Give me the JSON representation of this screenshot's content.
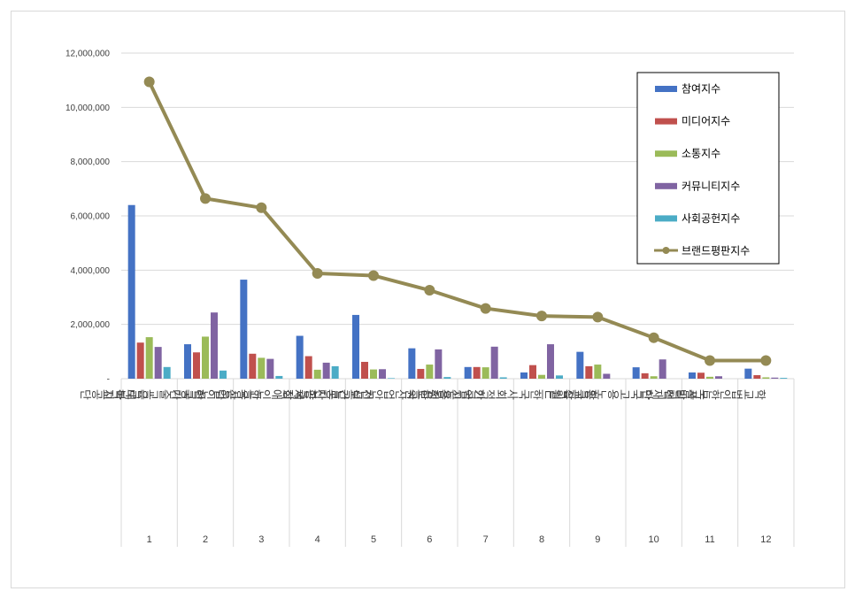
{
  "chart_data": {
    "type": "bar",
    "categories": [
      "1",
      "2",
      "3",
      "4",
      "5",
      "6",
      "7",
      "8",
      "9",
      "10",
      "11",
      "12"
    ],
    "category_names": [
      "근로복지공단",
      "한국기술교육대학교",
      "한국산업인력공단",
      "한국장애인고용공단",
      "건설근로자공제회",
      "한국산업안전보건공단",
      "한국고용정보원",
      "한국사회적기업진흥원",
      "한국잡월드",
      "한국고용노동교육원",
      "노사발전재단",
      "학교법인한국폴리텍"
    ],
    "series": [
      {
        "name": "참여지수",
        "type": "bar",
        "color": "#4472c4",
        "values": [
          6400000,
          1270000,
          3650000,
          1580000,
          2350000,
          1120000,
          430000,
          230000,
          990000,
          420000,
          230000,
          370000
        ]
      },
      {
        "name": "미디어지수",
        "type": "bar",
        "color": "#c0504d",
        "values": [
          1330000,
          970000,
          920000,
          830000,
          620000,
          360000,
          430000,
          500000,
          460000,
          200000,
          220000,
          130000
        ]
      },
      {
        "name": "소통지수",
        "type": "bar",
        "color": "#9bbb59",
        "values": [
          1530000,
          1550000,
          770000,
          330000,
          340000,
          520000,
          420000,
          140000,
          520000,
          90000,
          70000,
          50000
        ]
      },
      {
        "name": "커뮤니티지수",
        "type": "bar",
        "color": "#8064a2",
        "values": [
          1170000,
          2440000,
          730000,
          590000,
          350000,
          1080000,
          1180000,
          1270000,
          180000,
          710000,
          90000,
          40000
        ]
      },
      {
        "name": "사회공헌지수",
        "type": "bar",
        "color": "#4bacc6",
        "values": [
          430000,
          300000,
          100000,
          460000,
          20000,
          60000,
          50000,
          120000,
          0,
          0,
          0,
          30000
        ]
      },
      {
        "name": "브랜드평판지수",
        "type": "line",
        "color": "#948a54",
        "values": [
          10940000,
          6640000,
          6300000,
          3880000,
          3800000,
          3260000,
          2590000,
          2310000,
          2270000,
          1510000,
          670000,
          670000
        ]
      }
    ],
    "y_ticks": [
      "-",
      "2,000,000",
      "4,000,000",
      "6,000,000",
      "8,000,000",
      "10,000,000",
      "12,000,000"
    ],
    "ylim": [
      0,
      12000000
    ],
    "grid": true,
    "legend_position": "top-right"
  }
}
